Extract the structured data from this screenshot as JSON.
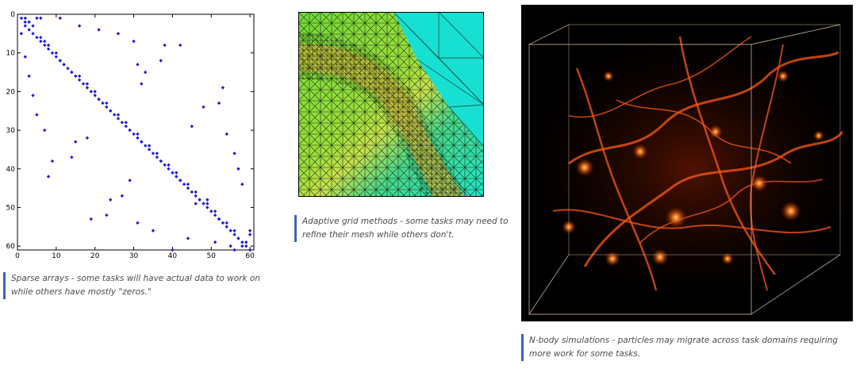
{
  "figures": [
    {
      "caption": "Sparse arrays - some tasks will have actual data to work on while others have mostly \"zeros.\""
    },
    {
      "caption": "Adaptive grid methods - some tasks may need to refine their mesh while others don't."
    },
    {
      "caption": "N-body simulations - particles may migrate across task domains requiring more work for some tasks."
    }
  ],
  "chart_data": {
    "type": "scatter",
    "title": "",
    "xlabel": "",
    "ylabel": "",
    "xlim": [
      0,
      61
    ],
    "ylim": [
      61,
      0
    ],
    "x_ticks": [
      0,
      10,
      20,
      30,
      40,
      50,
      60
    ],
    "y_ticks": [
      0,
      10,
      20,
      30,
      40,
      50,
      60
    ],
    "x_tick_labels": [
      "0",
      "10",
      "20",
      "30",
      "40",
      "50",
      "60"
    ],
    "y_tick_labels": [
      "0",
      "10",
      "20",
      "30",
      "40",
      "50",
      "60"
    ],
    "marker_color": "#1a1adc",
    "points": [
      [
        1,
        1
      ],
      [
        2,
        2
      ],
      [
        2,
        3
      ],
      [
        3,
        4
      ],
      [
        4,
        5
      ],
      [
        5,
        6
      ],
      [
        6,
        7
      ],
      [
        7,
        8
      ],
      [
        8,
        9
      ],
      [
        9,
        10
      ],
      [
        10,
        11
      ],
      [
        11,
        12
      ],
      [
        12,
        13
      ],
      [
        13,
        14
      ],
      [
        14,
        15
      ],
      [
        15,
        16
      ],
      [
        16,
        17
      ],
      [
        17,
        18
      ],
      [
        18,
        19
      ],
      [
        19,
        20
      ],
      [
        20,
        21
      ],
      [
        21,
        22
      ],
      [
        22,
        23
      ],
      [
        23,
        24
      ],
      [
        24,
        25
      ],
      [
        25,
        26
      ],
      [
        26,
        27
      ],
      [
        27,
        28
      ],
      [
        28,
        29
      ],
      [
        29,
        30
      ],
      [
        30,
        31
      ],
      [
        31,
        32
      ],
      [
        32,
        33
      ],
      [
        33,
        34
      ],
      [
        34,
        35
      ],
      [
        35,
        36
      ],
      [
        36,
        37
      ],
      [
        37,
        38
      ],
      [
        38,
        39
      ],
      [
        39,
        40
      ],
      [
        40,
        41
      ],
      [
        41,
        42
      ],
      [
        42,
        43
      ],
      [
        43,
        44
      ],
      [
        44,
        45
      ],
      [
        45,
        46
      ],
      [
        46,
        47
      ],
      [
        47,
        48
      ],
      [
        48,
        49
      ],
      [
        49,
        50
      ],
      [
        50,
        51
      ],
      [
        51,
        52
      ],
      [
        52,
        53
      ],
      [
        53,
        54
      ],
      [
        54,
        55
      ],
      [
        55,
        56
      ],
      [
        56,
        57
      ],
      [
        57,
        58
      ],
      [
        58,
        59
      ],
      [
        59,
        60
      ],
      [
        60,
        61
      ],
      [
        2,
        1
      ],
      [
        3,
        2
      ],
      [
        4,
        3
      ],
      [
        6,
        6
      ],
      [
        7,
        7
      ],
      [
        8,
        8
      ],
      [
        10,
        10
      ],
      [
        11,
        12
      ],
      [
        12,
        13
      ],
      [
        14,
        15
      ],
      [
        16,
        16
      ],
      [
        18,
        18
      ],
      [
        20,
        20
      ],
      [
        21,
        22
      ],
      [
        23,
        23
      ],
      [
        24,
        25
      ],
      [
        26,
        26
      ],
      [
        28,
        28
      ],
      [
        29,
        30
      ],
      [
        31,
        31
      ],
      [
        32,
        33
      ],
      [
        34,
        34
      ],
      [
        36,
        36
      ],
      [
        37,
        38
      ],
      [
        39,
        39
      ],
      [
        41,
        41
      ],
      [
        42,
        43
      ],
      [
        44,
        44
      ],
      [
        46,
        46
      ],
      [
        47,
        48
      ],
      [
        49,
        49
      ],
      [
        51,
        51
      ],
      [
        52,
        53
      ],
      [
        54,
        54
      ],
      [
        56,
        56
      ],
      [
        57,
        58
      ],
      [
        58,
        60
      ],
      [
        59,
        59
      ],
      [
        60,
        57
      ],
      [
        60,
        56
      ],
      [
        1,
        5
      ],
      [
        2,
        11
      ],
      [
        5,
        1
      ],
      [
        6,
        1
      ],
      [
        11,
        1
      ],
      [
        16,
        3
      ],
      [
        21,
        4
      ],
      [
        26,
        5
      ],
      [
        30,
        7
      ],
      [
        38,
        8
      ],
      [
        42,
        8
      ],
      [
        3,
        16
      ],
      [
        4,
        21
      ],
      [
        5,
        26
      ],
      [
        7,
        30
      ],
      [
        9,
        38
      ],
      [
        8,
        42
      ],
      [
        31,
        13
      ],
      [
        32,
        18
      ],
      [
        33,
        15
      ],
      [
        37,
        12
      ],
      [
        45,
        29
      ],
      [
        48,
        24
      ],
      [
        52,
        23
      ],
      [
        53,
        19
      ],
      [
        54,
        31
      ],
      [
        56,
        36
      ],
      [
        57,
        40
      ],
      [
        58,
        44
      ],
      [
        51,
        59
      ],
      [
        49,
        48
      ],
      [
        46,
        49
      ],
      [
        44,
        58
      ],
      [
        40,
        61
      ],
      [
        35,
        56
      ],
      [
        31,
        54
      ],
      [
        27,
        47
      ],
      [
        24,
        48
      ],
      [
        23,
        52
      ],
      [
        19,
        53
      ],
      [
        15,
        33
      ],
      [
        18,
        32
      ],
      [
        14,
        37
      ],
      [
        29,
        43
      ],
      [
        55,
        60
      ],
      [
        56,
        61
      ]
    ]
  }
}
